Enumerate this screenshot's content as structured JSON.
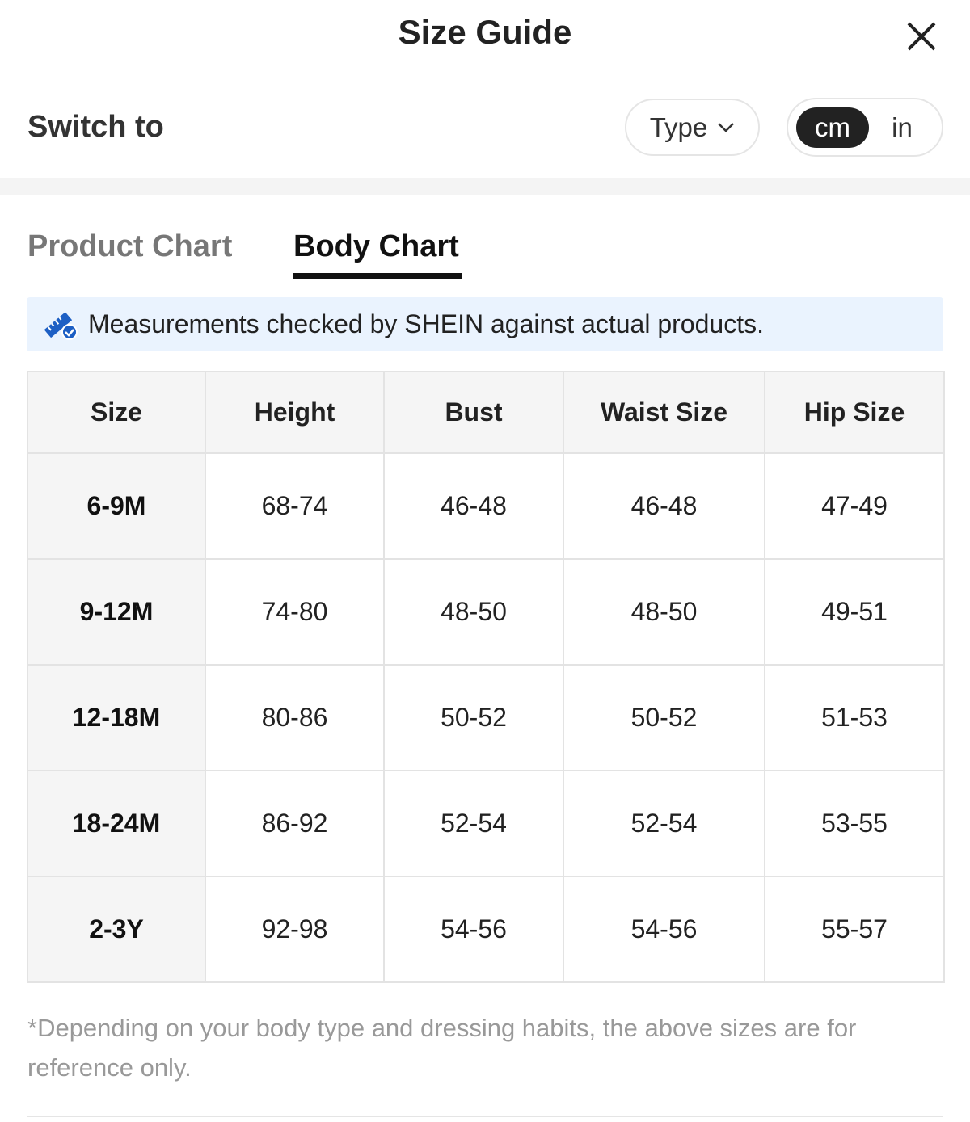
{
  "header": {
    "title": "Size Guide"
  },
  "switch": {
    "label": "Switch to",
    "type_button": "Type",
    "units": [
      "cm",
      "in"
    ]
  },
  "tabs": [
    "Product Chart",
    "Body Chart"
  ],
  "notice": "Measurements checked by SHEIN against actual products.",
  "table": {
    "header": [
      "Size",
      "Height",
      "Bust",
      "Waist Size",
      "Hip Size"
    ],
    "rows": [
      [
        "6-9M",
        "68-74",
        "46-48",
        "46-48",
        "47-49"
      ],
      [
        "9-12M",
        "74-80",
        "48-50",
        "48-50",
        "49-51"
      ],
      [
        "12-18M",
        "80-86",
        "50-52",
        "50-52",
        "51-53"
      ],
      [
        "18-24M",
        "86-92",
        "52-54",
        "52-54",
        "53-55"
      ],
      [
        "2-3Y",
        "92-98",
        "54-56",
        "54-56",
        "55-57"
      ]
    ]
  },
  "footnote": "*Depending on your body type and dressing habits, the above sizes are for reference only."
}
